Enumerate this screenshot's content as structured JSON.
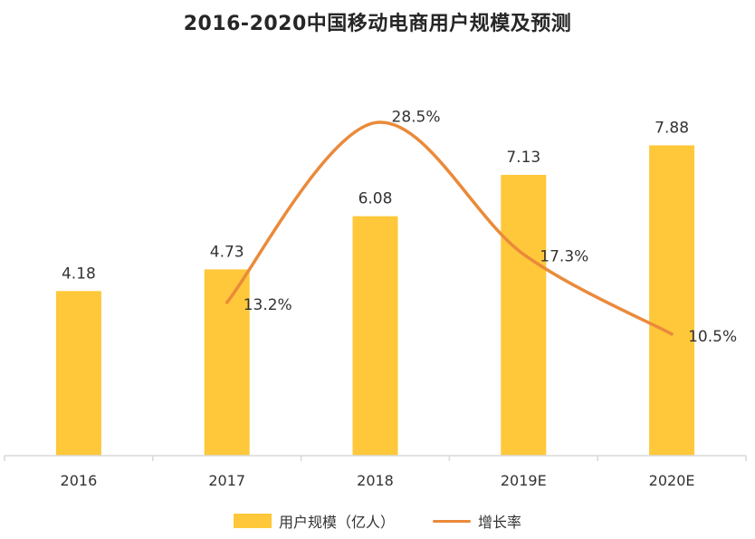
{
  "title": "2016-2020中国移动电商用户规模及预测",
  "colors": {
    "bar": "#FFC83A",
    "line": "#EA8A3A",
    "axis": "#d9d9d9",
    "text": "#333333"
  },
  "legend": {
    "bar_label": "用户规模（亿人）",
    "line_label": "增长率"
  },
  "chart_data": {
    "type": "bar",
    "title": "2016-2020中国移动电商用户规模及预测",
    "categories": [
      "2016",
      "2017",
      "2018",
      "2019E",
      "2020E"
    ],
    "series": [
      {
        "name": "用户规模（亿人）",
        "type": "bar",
        "values": [
          4.18,
          4.73,
          6.08,
          7.13,
          7.88
        ],
        "labels": [
          "4.18",
          "4.73",
          "6.08",
          "7.13",
          "7.88"
        ]
      },
      {
        "name": "增长率",
        "type": "line",
        "smooth": true,
        "x": [
          "2017",
          "2018",
          "2019E",
          "2020E"
        ],
        "values": [
          13.2,
          28.5,
          17.3,
          10.5
        ],
        "labels": [
          "13.2%",
          "28.5%",
          "17.3%",
          "10.5%"
        ]
      }
    ],
    "ylim": [
      0,
      9.5
    ],
    "y2lim": [
      0,
      30
    ],
    "grid": false,
    "legend_position": "bottom"
  }
}
